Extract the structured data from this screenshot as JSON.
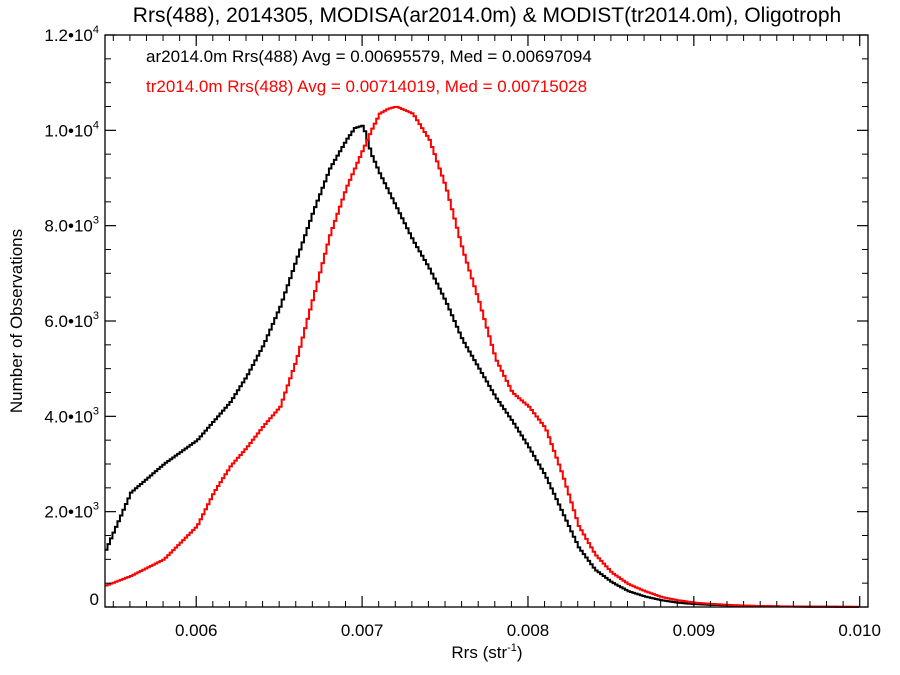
{
  "chart_data": {
    "type": "line",
    "title": "Rrs(488), 2014305, MODISA(ar2014.0m) & MODIST(tr2014.0m), Oligotroph",
    "xlabel_base": "Rrs (str",
    "xlabel_sup": "-1",
    "xlabel_close": ")",
    "ylabel": "Number of Observations",
    "xlim": [
      0.00545,
      0.01005
    ],
    "ylim": [
      0,
      12000
    ],
    "x_ticks": [
      {
        "value": 0.006,
        "label": "0.006"
      },
      {
        "value": 0.007,
        "label": "0.007"
      },
      {
        "value": 0.008,
        "label": "0.008"
      },
      {
        "value": 0.009,
        "label": "0.009"
      },
      {
        "value": 0.01,
        "label": "0.010"
      }
    ],
    "y_ticks": [
      {
        "value": 0,
        "base": "0",
        "exp": ""
      },
      {
        "value": 2000,
        "base": "2.0•10",
        "exp": "3"
      },
      {
        "value": 4000,
        "base": "4.0•10",
        "exp": "3"
      },
      {
        "value": 6000,
        "base": "6.0•10",
        "exp": "3"
      },
      {
        "value": 8000,
        "base": "8.0•10",
        "exp": "3"
      },
      {
        "value": 10000,
        "base": "1.0•10",
        "exp": "4"
      },
      {
        "value": 12000,
        "base": "1.2•10",
        "exp": "4"
      }
    ],
    "grid": false,
    "legend_position": "top-left",
    "series": [
      {
        "label": "ar2014.0m Rrs(488) Avg = 0.00695579, Med = 0.00697094",
        "color": "#000000",
        "x": [
          0.00545,
          0.0056,
          0.0058,
          0.006,
          0.0062,
          0.0063,
          0.0064,
          0.0065,
          0.0066,
          0.0067,
          0.0068,
          0.0069,
          0.00695,
          0.007,
          0.00705,
          0.0071,
          0.0072,
          0.0073,
          0.0074,
          0.0075,
          0.0076,
          0.0077,
          0.0078,
          0.0079,
          0.008,
          0.0081,
          0.0082,
          0.0083,
          0.0084,
          0.0085,
          0.0086,
          0.0087,
          0.0088,
          0.0089,
          0.009,
          0.0091,
          0.0092,
          0.0093,
          0.0094,
          0.0095,
          0.0097,
          0.01
        ],
        "y": [
          1200,
          2400,
          3000,
          3500,
          4300,
          4850,
          5500,
          6300,
          7300,
          8300,
          9200,
          9800,
          10050,
          10100,
          9500,
          9100,
          8400,
          7700,
          7100,
          6400,
          5600,
          5000,
          4400,
          3900,
          3350,
          2750,
          2000,
          1250,
          780,
          520,
          330,
          220,
          140,
          90,
          60,
          45,
          35,
          25,
          18,
          12,
          6,
          2
        ]
      },
      {
        "label": "tr2014.0m Rrs(488) Avg = 0.00714019, Med = 0.00715028",
        "color": "#ff0000",
        "x": [
          0.00545,
          0.0056,
          0.0058,
          0.006,
          0.0061,
          0.0062,
          0.0063,
          0.0064,
          0.0065,
          0.0066,
          0.0067,
          0.0068,
          0.0069,
          0.007,
          0.00705,
          0.0071,
          0.00715,
          0.0072,
          0.0073,
          0.0074,
          0.0075,
          0.0076,
          0.0077,
          0.0078,
          0.0079,
          0.008,
          0.0081,
          0.0082,
          0.0083,
          0.0084,
          0.0085,
          0.0086,
          0.0087,
          0.0088,
          0.0089,
          0.009,
          0.0091,
          0.0092,
          0.0093,
          0.0094,
          0.0096,
          0.01
        ],
        "y": [
          450,
          650,
          1000,
          1700,
          2400,
          2950,
          3350,
          3800,
          4200,
          5200,
          6500,
          7800,
          8800,
          9600,
          10000,
          10350,
          10450,
          10500,
          10350,
          9800,
          8800,
          7500,
          6400,
          5200,
          4500,
          4200,
          3750,
          2800,
          1700,
          1100,
          720,
          480,
          330,
          210,
          140,
          90,
          65,
          45,
          30,
          20,
          10,
          3
        ]
      }
    ]
  }
}
